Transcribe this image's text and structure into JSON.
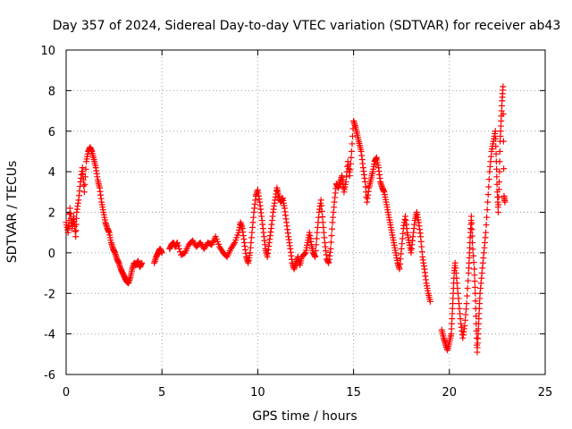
{
  "chart_data": {
    "type": "scatter",
    "title": "Day 357 of 2024, Sidereal Day-to-day VTEC variation (SDTVAR) for receiver ab43",
    "xlabel": "GPS time / hours",
    "ylabel": "SDTVAR / TECUs",
    "xlim": [
      0,
      25
    ],
    "ylim": [
      -6,
      10
    ],
    "xticks": [
      0,
      5,
      10,
      15,
      20,
      25
    ],
    "yticks": [
      -6,
      -4,
      -2,
      0,
      2,
      4,
      6,
      8,
      10
    ],
    "grid": true,
    "marker": "+",
    "marker_color": "#ff0000",
    "series": [
      {
        "name": "SDTVAR",
        "points": [
          [
            0.0,
            1.5
          ],
          [
            0.1,
            1.0
          ],
          [
            0.2,
            2.2
          ],
          [
            0.3,
            1.2
          ],
          [
            0.4,
            1.8
          ],
          [
            0.5,
            0.8
          ],
          [
            0.55,
            2.0
          ],
          [
            0.65,
            2.6
          ],
          [
            0.75,
            3.5
          ],
          [
            0.85,
            4.2
          ],
          [
            0.95,
            3.0
          ],
          [
            1.05,
            4.5
          ],
          [
            1.15,
            5.0
          ],
          [
            1.25,
            5.2
          ],
          [
            1.35,
            5.0
          ],
          [
            1.45,
            4.6
          ],
          [
            1.55,
            4.2
          ],
          [
            1.65,
            3.6
          ],
          [
            1.75,
            3.2
          ],
          [
            1.85,
            2.5
          ],
          [
            1.95,
            2.0
          ],
          [
            2.05,
            1.5
          ],
          [
            2.15,
            1.2
          ],
          [
            2.25,
            1.0
          ],
          [
            2.35,
            0.5
          ],
          [
            2.45,
            0.2
          ],
          [
            2.55,
            0.0
          ],
          [
            2.65,
            -0.3
          ],
          [
            2.75,
            -0.5
          ],
          [
            2.85,
            -0.8
          ],
          [
            2.95,
            -1.0
          ],
          [
            3.05,
            -1.2
          ],
          [
            3.15,
            -1.4
          ],
          [
            3.25,
            -1.5
          ],
          [
            3.35,
            -1.2
          ],
          [
            3.45,
            -0.8
          ],
          [
            3.55,
            -0.5
          ],
          [
            3.65,
            -0.6
          ],
          [
            3.75,
            -0.4
          ],
          [
            3.85,
            -0.7
          ],
          [
            3.95,
            -0.5
          ],
          [
            4.6,
            -0.5
          ],
          [
            4.7,
            -0.2
          ],
          [
            4.8,
            0.0
          ],
          [
            4.9,
            0.2
          ],
          [
            5.0,
            0.0
          ],
          [
            5.4,
            0.2
          ],
          [
            5.5,
            0.4
          ],
          [
            5.6,
            0.5
          ],
          [
            5.7,
            0.3
          ],
          [
            5.8,
            0.5
          ],
          [
            6.0,
            -0.1
          ],
          [
            6.2,
            0.0
          ],
          [
            6.4,
            0.4
          ],
          [
            6.6,
            0.6
          ],
          [
            6.8,
            0.3
          ],
          [
            7.0,
            0.5
          ],
          [
            7.2,
            0.2
          ],
          [
            7.4,
            0.5
          ],
          [
            7.6,
            0.4
          ],
          [
            7.8,
            0.8
          ],
          [
            8.0,
            0.3
          ],
          [
            8.2,
            0.0
          ],
          [
            8.4,
            -0.2
          ],
          [
            8.6,
            0.2
          ],
          [
            8.8,
            0.5
          ],
          [
            9.0,
            1.0
          ],
          [
            9.1,
            1.5
          ],
          [
            9.2,
            1.2
          ],
          [
            9.3,
            0.5
          ],
          [
            9.4,
            -0.2
          ],
          [
            9.5,
            -0.5
          ],
          [
            9.6,
            0.0
          ],
          [
            9.7,
            1.0
          ],
          [
            9.8,
            2.0
          ],
          [
            9.9,
            2.8
          ],
          [
            10.0,
            3.1
          ],
          [
            10.1,
            2.5
          ],
          [
            10.2,
            1.8
          ],
          [
            10.3,
            1.0
          ],
          [
            10.4,
            0.2
          ],
          [
            10.5,
            -0.2
          ],
          [
            10.6,
            0.5
          ],
          [
            10.7,
            1.2
          ],
          [
            10.8,
            2.0
          ],
          [
            10.9,
            2.6
          ],
          [
            11.0,
            3.2
          ],
          [
            11.1,
            2.8
          ],
          [
            11.2,
            2.5
          ],
          [
            11.3,
            2.7
          ],
          [
            11.4,
            2.2
          ],
          [
            11.5,
            1.5
          ],
          [
            11.6,
            0.8
          ],
          [
            11.7,
            0.2
          ],
          [
            11.8,
            -0.5
          ],
          [
            11.9,
            -0.8
          ],
          [
            12.0,
            -0.5
          ],
          [
            12.1,
            -0.2
          ],
          [
            12.2,
            -0.6
          ],
          [
            12.3,
            -0.2
          ],
          [
            12.5,
            0.0
          ],
          [
            12.6,
            0.5
          ],
          [
            12.7,
            1.0
          ],
          [
            12.8,
            0.4
          ],
          [
            12.9,
            0.0
          ],
          [
            13.0,
            -0.2
          ],
          [
            13.1,
            1.0
          ],
          [
            13.2,
            2.0
          ],
          [
            13.3,
            2.6
          ],
          [
            13.4,
            1.5
          ],
          [
            13.5,
            0.5
          ],
          [
            13.6,
            -0.3
          ],
          [
            13.7,
            -0.5
          ],
          [
            13.8,
            0.2
          ],
          [
            13.9,
            1.5
          ],
          [
            14.0,
            2.5
          ],
          [
            14.1,
            3.4
          ],
          [
            14.2,
            3.2
          ],
          [
            14.3,
            3.5
          ],
          [
            14.4,
            3.8
          ],
          [
            14.5,
            3.0
          ],
          [
            14.6,
            3.5
          ],
          [
            14.7,
            4.5
          ],
          [
            14.8,
            3.8
          ],
          [
            14.9,
            5.0
          ],
          [
            15.0,
            6.5
          ],
          [
            15.1,
            6.2
          ],
          [
            15.2,
            5.8
          ],
          [
            15.3,
            5.4
          ],
          [
            15.4,
            5.0
          ],
          [
            15.5,
            4.2
          ],
          [
            15.6,
            3.5
          ],
          [
            15.7,
            2.5
          ],
          [
            15.8,
            3.2
          ],
          [
            15.9,
            3.6
          ],
          [
            16.0,
            4.0
          ],
          [
            16.1,
            4.5
          ],
          [
            16.2,
            4.7
          ],
          [
            16.3,
            4.2
          ],
          [
            16.4,
            3.5
          ],
          [
            16.5,
            3.2
          ],
          [
            16.6,
            3.0
          ],
          [
            16.7,
            2.5
          ],
          [
            16.8,
            2.0
          ],
          [
            16.9,
            1.5
          ],
          [
            17.0,
            1.0
          ],
          [
            17.1,
            0.5
          ],
          [
            17.2,
            0.0
          ],
          [
            17.3,
            -0.5
          ],
          [
            17.4,
            -0.8
          ],
          [
            17.5,
            0.2
          ],
          [
            17.6,
            1.2
          ],
          [
            17.7,
            1.8
          ],
          [
            17.8,
            1.0
          ],
          [
            17.9,
            0.5
          ],
          [
            18.0,
            0.0
          ],
          [
            18.1,
            0.8
          ],
          [
            18.2,
            1.6
          ],
          [
            18.3,
            2.0
          ],
          [
            18.4,
            1.5
          ],
          [
            18.5,
            0.8
          ],
          [
            18.6,
            -0.2
          ],
          [
            18.7,
            -0.8
          ],
          [
            18.8,
            -1.5
          ],
          [
            18.9,
            -2.0
          ],
          [
            19.0,
            -2.4
          ],
          [
            19.6,
            -3.8
          ],
          [
            19.7,
            -4.2
          ],
          [
            19.8,
            -4.5
          ],
          [
            19.9,
            -4.8
          ],
          [
            20.0,
            -4.4
          ],
          [
            20.1,
            -4.0
          ],
          [
            20.15,
            -3.0
          ],
          [
            20.2,
            -2.0
          ],
          [
            20.25,
            -1.0
          ],
          [
            20.3,
            -0.5
          ],
          [
            20.4,
            -1.5
          ],
          [
            20.5,
            -2.5
          ],
          [
            20.6,
            -3.5
          ],
          [
            20.7,
            -4.2
          ],
          [
            20.8,
            -3.6
          ],
          [
            20.9,
            -2.5
          ],
          [
            21.0,
            -1.0
          ],
          [
            21.05,
            0.0
          ],
          [
            21.1,
            1.0
          ],
          [
            21.15,
            1.8
          ],
          [
            21.2,
            0.5
          ],
          [
            21.3,
            -0.8
          ],
          [
            21.35,
            -2.0
          ],
          [
            21.4,
            -3.5
          ],
          [
            21.45,
            -4.9
          ],
          [
            21.5,
            -4.0
          ],
          [
            21.55,
            -3.0
          ],
          [
            21.6,
            -2.0
          ],
          [
            21.7,
            -1.0
          ],
          [
            21.8,
            0.0
          ],
          [
            21.9,
            1.0
          ],
          [
            22.0,
            2.5
          ],
          [
            22.1,
            4.0
          ],
          [
            22.2,
            5.0
          ],
          [
            22.3,
            5.5
          ],
          [
            22.4,
            6.0
          ],
          [
            22.45,
            4.5
          ],
          [
            22.5,
            3.0
          ],
          [
            22.55,
            2.0
          ],
          [
            22.6,
            3.5
          ],
          [
            22.65,
            5.5
          ],
          [
            22.7,
            6.5
          ],
          [
            22.75,
            7.5
          ],
          [
            22.8,
            8.2
          ],
          [
            22.85,
            2.8
          ],
          [
            22.9,
            2.5
          ]
        ]
      }
    ]
  }
}
